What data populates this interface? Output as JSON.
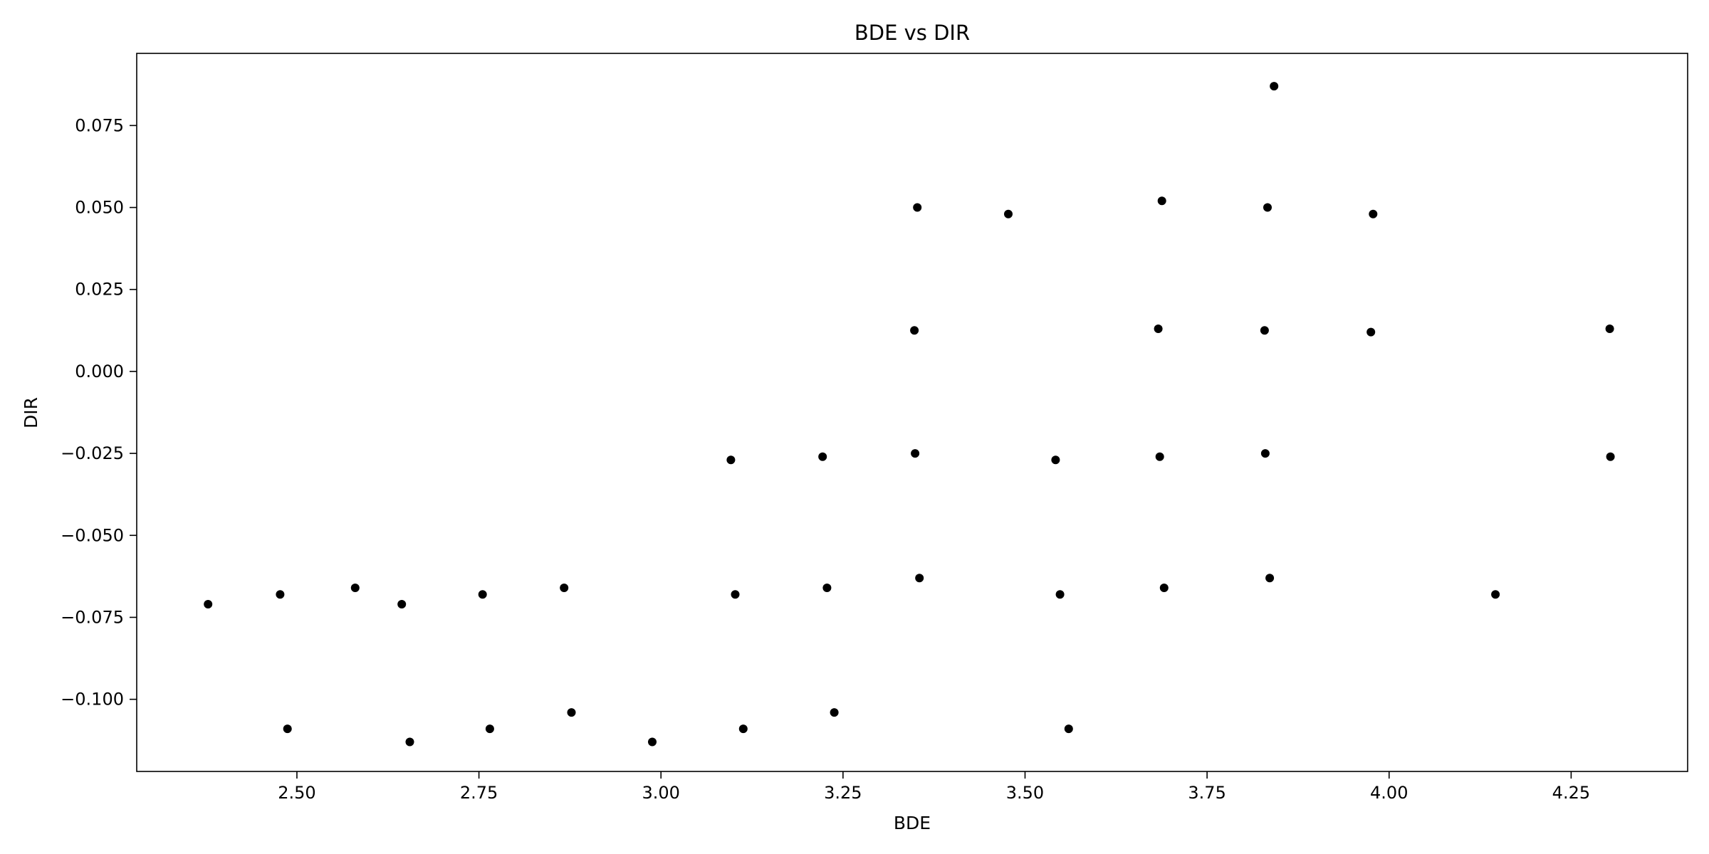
{
  "chart_data": {
    "type": "scatter",
    "title": "BDE vs DIR",
    "xlabel": "BDE",
    "ylabel": "DIR",
    "xlim": [
      2.28,
      4.41
    ],
    "ylim": [
      -0.122,
      0.097
    ],
    "xticks": [
      2.5,
      2.75,
      3.0,
      3.25,
      3.5,
      3.75,
      4.0,
      4.25
    ],
    "xtick_labels": [
      "2.50",
      "2.75",
      "3.00",
      "3.25",
      "3.50",
      "3.75",
      "4.00",
      "4.25"
    ],
    "yticks": [
      -0.1,
      -0.075,
      -0.05,
      -0.025,
      0.0,
      0.025,
      0.05,
      0.075
    ],
    "ytick_labels": [
      "−0.100",
      "−0.075",
      "−0.050",
      "−0.025",
      "0.000",
      "0.025",
      "0.050",
      "0.075"
    ],
    "grid": false,
    "marker_color": "#000000",
    "points": [
      {
        "x": 2.378,
        "y": -0.071
      },
      {
        "x": 2.477,
        "y": -0.068
      },
      {
        "x": 2.487,
        "y": -0.109
      },
      {
        "x": 2.58,
        "y": -0.066
      },
      {
        "x": 2.644,
        "y": -0.071
      },
      {
        "x": 2.655,
        "y": -0.113
      },
      {
        "x": 2.755,
        "y": -0.068
      },
      {
        "x": 2.765,
        "y": -0.109
      },
      {
        "x": 2.867,
        "y": -0.066
      },
      {
        "x": 2.877,
        "y": -0.104
      },
      {
        "x": 2.988,
        "y": -0.113
      },
      {
        "x": 3.096,
        "y": -0.027
      },
      {
        "x": 3.102,
        "y": -0.068
      },
      {
        "x": 3.113,
        "y": -0.109
      },
      {
        "x": 3.222,
        "y": -0.026
      },
      {
        "x": 3.228,
        "y": -0.066
      },
      {
        "x": 3.238,
        "y": -0.104
      },
      {
        "x": 3.348,
        "y": 0.0125
      },
      {
        "x": 3.349,
        "y": -0.025
      },
      {
        "x": 3.352,
        "y": 0.05
      },
      {
        "x": 3.355,
        "y": -0.063
      },
      {
        "x": 3.477,
        "y": 0.048
      },
      {
        "x": 3.542,
        "y": -0.027
      },
      {
        "x": 3.548,
        "y": -0.068
      },
      {
        "x": 3.56,
        "y": -0.109
      },
      {
        "x": 3.683,
        "y": 0.013
      },
      {
        "x": 3.685,
        "y": -0.026
      },
      {
        "x": 3.688,
        "y": 0.052
      },
      {
        "x": 3.691,
        "y": -0.066
      },
      {
        "x": 3.829,
        "y": 0.0125
      },
      {
        "x": 3.83,
        "y": -0.025
      },
      {
        "x": 3.833,
        "y": 0.05
      },
      {
        "x": 3.836,
        "y": -0.063
      },
      {
        "x": 3.842,
        "y": 0.087
      },
      {
        "x": 3.975,
        "y": 0.012
      },
      {
        "x": 3.978,
        "y": 0.048
      },
      {
        "x": 4.146,
        "y": -0.068
      },
      {
        "x": 4.303,
        "y": 0.013
      },
      {
        "x": 4.304,
        "y": -0.026
      }
    ]
  }
}
